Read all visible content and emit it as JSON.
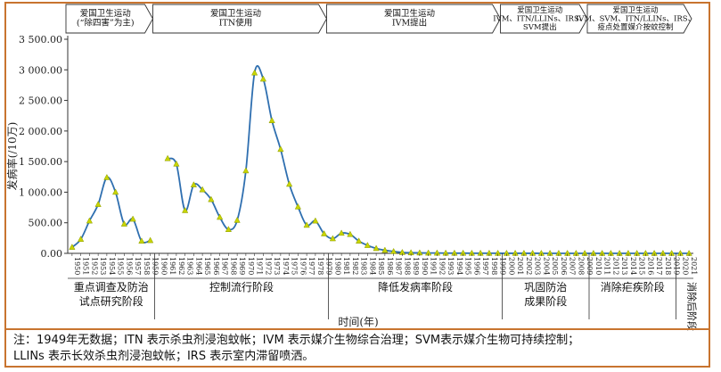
{
  "chart_data": {
    "type": "line",
    "ylabel": "发病率(/10万)",
    "xlabel": "时间(年)",
    "ylim": [
      0,
      3500
    ],
    "yticks": [
      "0.00",
      "500.00",
      "1 000.00",
      "1 500.00",
      "2 000.00",
      "2 500.00",
      "3 000.00",
      "3 500.00"
    ],
    "ytick_values": [
      0,
      500,
      1000,
      1500,
      2000,
      2500,
      3000,
      3500
    ],
    "series_color": "#2f6fb0",
    "marker_color": "#c8d400",
    "years": [
      "1950",
      "1951",
      "1952",
      "1953",
      "1954",
      "1955",
      "1956",
      "1957",
      "1958",
      "1959",
      "1960",
      "1961",
      "1962",
      "1963",
      "1964",
      "1965",
      "1966",
      "1967",
      "1968",
      "1969",
      "1970",
      "1971",
      "1972",
      "1973",
      "1974",
      "1975",
      "1976",
      "1977",
      "1978",
      "1979",
      "1980",
      "1981",
      "1982",
      "1983",
      "1984",
      "1985",
      "1986",
      "1987",
      "1988",
      "1989",
      "1990",
      "1991",
      "1992",
      "1993",
      "1994",
      "1995",
      "1996",
      "1997",
      "1998",
      "1999",
      "2000",
      "2001",
      "2002",
      "2003",
      "2004",
      "2005",
      "2006",
      "2007",
      "2008",
      "2009",
      "2010",
      "2011",
      "2012",
      "2013",
      "2014",
      "2015",
      "2016",
      "2017",
      "2018",
      "2019",
      "2020",
      "2021"
    ],
    "x_missing": [
      "1949"
    ],
    "values": [
      100,
      230,
      530,
      800,
      1240,
      1000,
      480,
      560,
      200,
      210,
      null,
      1550,
      1460,
      700,
      1120,
      1040,
      880,
      590,
      390,
      540,
      1350,
      2950,
      2850,
      2170,
      1700,
      1130,
      760,
      460,
      530,
      320,
      240,
      330,
      310,
      200,
      130,
      80,
      50,
      30,
      15,
      10,
      8,
      6,
      5,
      4,
      3,
      3,
      2,
      2,
      2,
      1,
      1,
      1,
      1,
      1,
      0.5,
      0.5,
      0.5,
      0.3,
      0.2,
      0.1,
      0.1,
      0.05,
      0.05,
      0.02,
      0.02,
      0.01,
      0.01,
      0,
      0,
      0,
      0,
      0
    ]
  },
  "campaign_headers": [
    {
      "line1": "爱国卫生运动",
      "line2": "(“除四害”为主)"
    },
    {
      "line1": "爱国卫生运动",
      "line2": "ITN使用"
    },
    {
      "line1": "爱国卫生运动",
      "line2": "IVM提出"
    },
    {
      "line1": "爱国卫生运动",
      "line2": "IVM、ITN/LLINs、IRS、",
      "line3": "SVM提出"
    },
    {
      "line1": "爱国卫生运动",
      "line2": "IVM、SVM、ITN/LLINs、IRS、",
      "line3": "疫点处置媒介按蚊控制"
    }
  ],
  "stages": [
    {
      "label1": "重点调查及防治",
      "label2": "试点研究阶段"
    },
    {
      "label1": "控制流行阶段"
    },
    {
      "label1": "降低发病率阶段"
    },
    {
      "label1": "巩固防治",
      "label2": "成果阶段"
    },
    {
      "label1": "消除疟疾阶段"
    },
    {
      "label1": "消除后阶段"
    }
  ],
  "footnote": {
    "line1": "注：1949年无数据；ITN 表示杀虫剂浸泡蚊帐；IVM 表示媒介生物综合治理；SVM表示媒介生物可持续控制；",
    "line2": "LLINs 表示长效杀虫剂浸泡蚊帐；IRS 表示室内滞留喷洒。"
  }
}
